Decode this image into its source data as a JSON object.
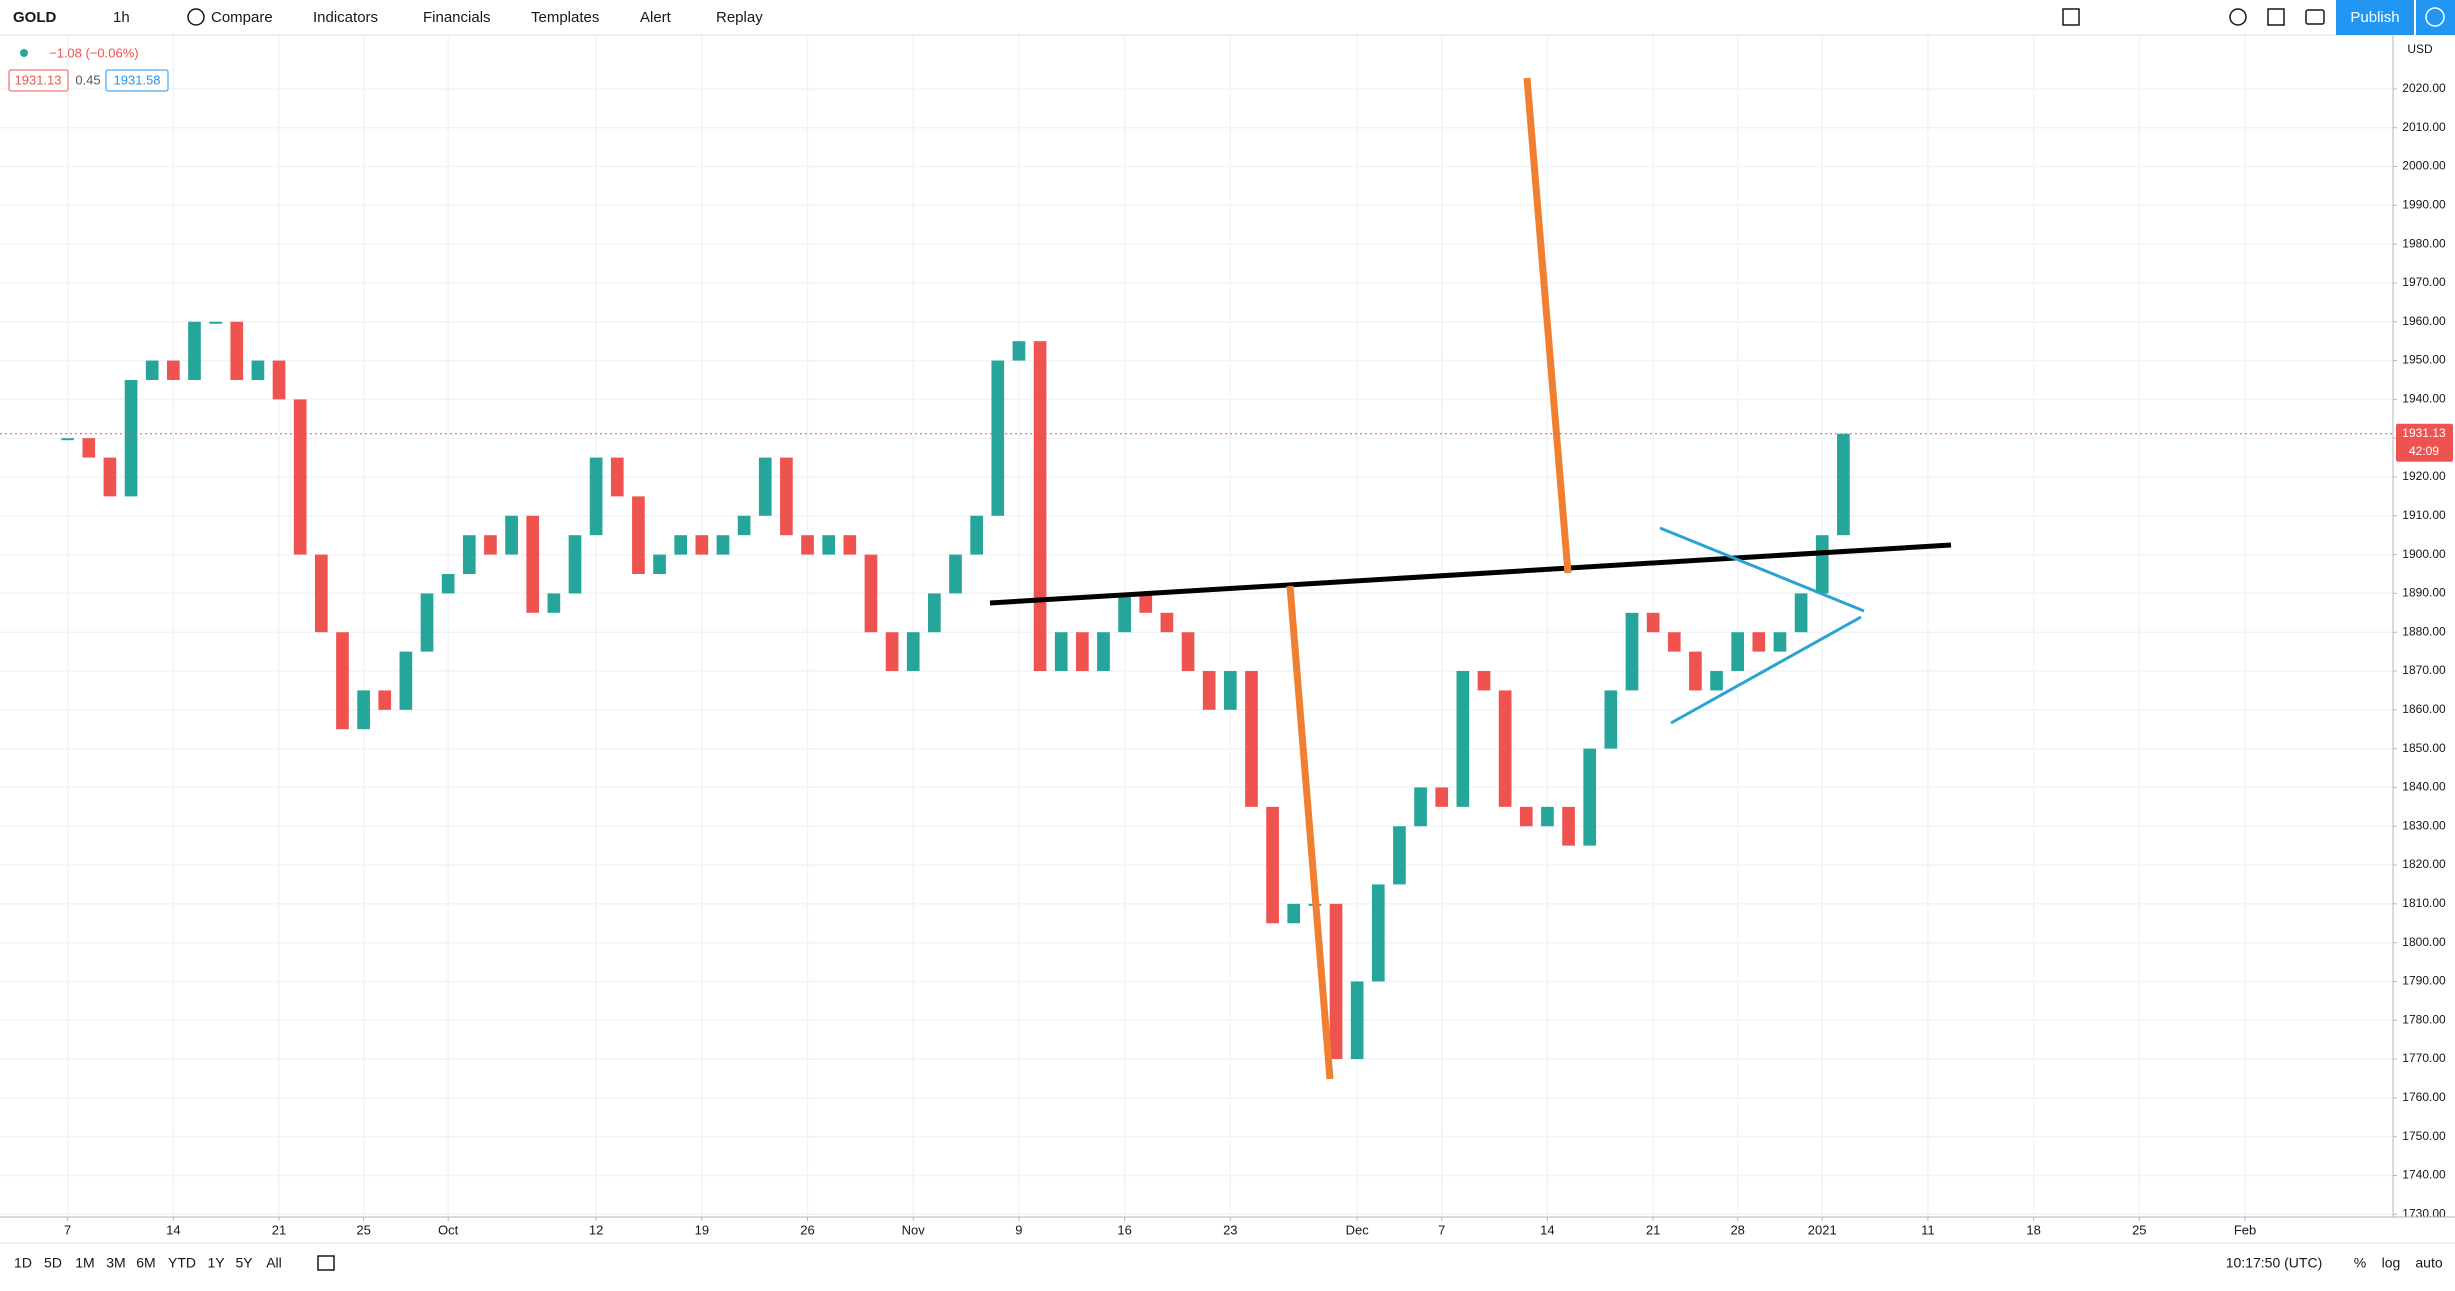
{
  "toolbar": {
    "symbol": "GOLD",
    "interval": "1h",
    "items": [
      "Compare",
      "Indicators",
      "Financials",
      "Templates",
      "Alert",
      "Replay"
    ],
    "publish": "Publish"
  },
  "legend": {
    "change": "−1.08 (−0.06%)",
    "bid": "1931.13",
    "spread": "0.45",
    "ask": "1931.58"
  },
  "chart_data": {
    "type": "candlestick",
    "currency": "USD",
    "x": [
      0,
      1,
      2,
      3,
      4,
      5,
      6,
      7,
      8,
      9,
      10,
      11,
      12,
      13,
      14,
      15,
      16,
      17,
      18,
      19,
      20,
      21,
      22,
      23,
      24,
      25,
      26,
      27,
      28,
      29,
      30,
      31,
      32,
      33,
      34,
      35,
      36,
      37,
      38,
      39,
      40,
      41,
      42,
      43,
      44,
      45,
      46,
      47,
      48,
      49,
      50,
      51,
      52,
      53,
      54,
      55,
      56,
      57,
      58,
      59,
      60,
      61,
      62,
      63,
      64,
      65,
      66,
      67,
      68,
      69,
      70,
      71,
      72,
      73,
      74,
      75,
      76,
      77,
      78,
      79,
      80,
      81,
      82,
      83,
      84
    ],
    "series": [
      {
        "name": "GOLD",
        "up_color": "#26a69a",
        "down_color": "#ef5350",
        "values": [
          1930,
          1925,
          1915,
          1945,
          1950,
          1945,
          1960,
          1960,
          1945,
          1950,
          1940,
          1900,
          1880,
          1855,
          1865,
          1860,
          1875,
          1890,
          1895,
          1905,
          1900,
          1910,
          1885,
          1890,
          1905,
          1925,
          1915,
          1895,
          1900,
          1905,
          1900,
          1905,
          1910,
          1925,
          1905,
          1900,
          1905,
          1900,
          1880,
          1870,
          1880,
          1890,
          1900,
          1910,
          1950,
          1955,
          1870,
          1880,
          1870,
          1880,
          1890,
          1885,
          1880,
          1870,
          1860,
          1870,
          1835,
          1805,
          1810,
          1810,
          1770,
          1790,
          1815,
          1830,
          1840,
          1835,
          1870,
          1865,
          1835,
          1830,
          1835,
          1825,
          1850,
          1865,
          1885,
          1880,
          1875,
          1865,
          1870,
          1880,
          1875,
          1880,
          1890,
          1905,
          1931.13
        ]
      }
    ],
    "last_price": {
      "value": 1931.13,
      "label": "1931.13",
      "countdown": "42:09"
    },
    "xlim": [
      -3.2,
      110
    ],
    "xticks": [
      {
        "value": 0,
        "label": "7"
      },
      {
        "value": 5,
        "label": "14"
      },
      {
        "value": 10,
        "label": "21"
      },
      {
        "value": 14,
        "label": "25"
      },
      {
        "value": 18,
        "label": "Oct"
      },
      {
        "value": 25,
        "label": "12"
      },
      {
        "value": 30,
        "label": "19"
      },
      {
        "value": 35,
        "label": "26"
      },
      {
        "value": 40,
        "label": "Nov"
      },
      {
        "value": 45,
        "label": "9"
      },
      {
        "value": 50,
        "label": "16"
      },
      {
        "value": 55,
        "label": "23"
      },
      {
        "value": 61,
        "label": "Dec"
      },
      {
        "value": 65,
        "label": "7"
      },
      {
        "value": 70,
        "label": "14"
      },
      {
        "value": 75,
        "label": "21"
      },
      {
        "value": 79,
        "label": "28"
      },
      {
        "value": 83,
        "label": "2021"
      },
      {
        "value": 88,
        "label": "11"
      },
      {
        "value": 93,
        "label": "18"
      },
      {
        "value": 98,
        "label": "25"
      },
      {
        "value": 103,
        "label": "Feb"
      }
    ],
    "ylim": [
      1729.3,
      2033.9
    ],
    "yticks": [
      {
        "value": 1730,
        "label": "1730.00"
      },
      {
        "value": 1740,
        "label": "1740.00"
      },
      {
        "value": 1750,
        "label": "1750.00"
      },
      {
        "value": 1760,
        "label": "1760.00"
      },
      {
        "value": 1770,
        "label": "1770.00"
      },
      {
        "value": 1780,
        "label": "1780.00"
      },
      {
        "value": 1790,
        "label": "1790.00"
      },
      {
        "value": 1800,
        "label": "1800.00"
      },
      {
        "value": 1810,
        "label": "1810.00"
      },
      {
        "value": 1820,
        "label": "1820.00"
      },
      {
        "value": 1830,
        "label": "1830.00"
      },
      {
        "value": 1840,
        "label": "1840.00"
      },
      {
        "value": 1850,
        "label": "1850.00"
      },
      {
        "value": 1860,
        "label": "1860.00"
      },
      {
        "value": 1870,
        "label": "1870.00"
      },
      {
        "value": 1880,
        "label": "1880.00"
      },
      {
        "value": 1890,
        "label": "1890.00"
      },
      {
        "value": 1900,
        "label": "1900.00"
      },
      {
        "value": 1910,
        "label": "1910.00"
      },
      {
        "value": 1920,
        "label": "1920.00"
      },
      {
        "value": 1930,
        "label": "1930.00"
      },
      {
        "value": 1940,
        "label": "1940.00"
      },
      {
        "value": 1950,
        "label": "1950.00"
      },
      {
        "value": 1960,
        "label": "1960.00"
      },
      {
        "value": 1970,
        "label": "1970.00"
      },
      {
        "value": 1980,
        "label": "1980.00"
      },
      {
        "value": 1990,
        "label": "1990.00"
      },
      {
        "value": 2000,
        "label": "2000.00"
      },
      {
        "value": 2010,
        "label": "2010.00"
      },
      {
        "value": 2020,
        "label": "2020.00"
      }
    ],
    "grid": true
  },
  "bottom_bar": {
    "ranges": [
      "1D",
      "5D",
      "1M",
      "3M",
      "6M",
      "YTD",
      "1Y",
      "5Y",
      "All"
    ],
    "clock": "10:17:50 (UTC)",
    "percent": "%",
    "log": "log",
    "auto": "auto"
  }
}
